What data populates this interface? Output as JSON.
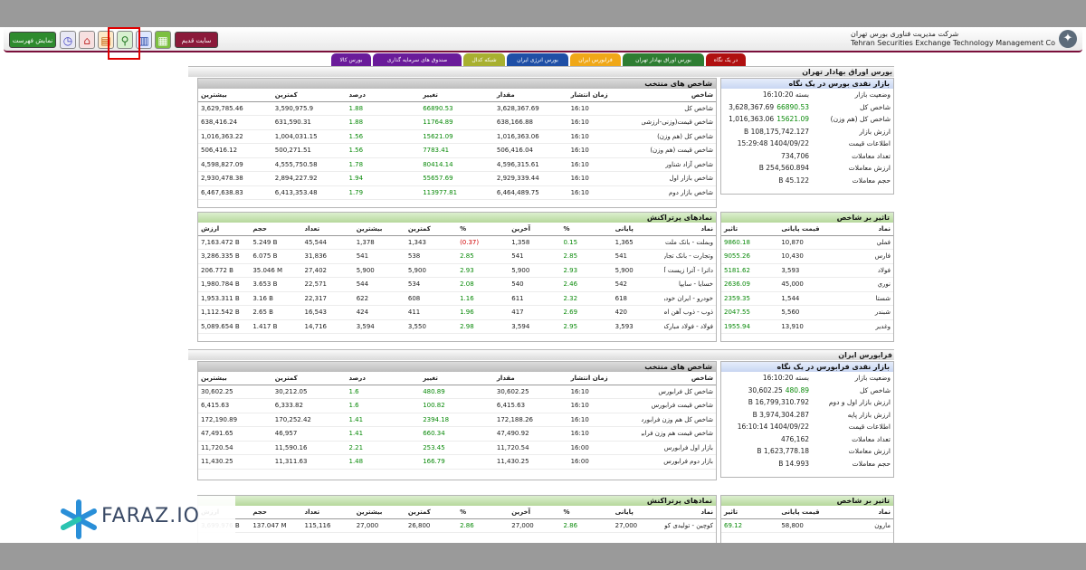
{
  "header": {
    "company_fa": "شرکت مدیریت فناوری بورس تهران",
    "company_en": "Tehran Securities Exchange Technology Management Co",
    "show_list_label": "نمایش فهرست",
    "old_site_label": "سایت قدیم"
  },
  "tabs": [
    {
      "label": "در یک نگاه",
      "color": "#b01010"
    },
    {
      "label": "بورس اوراق بهادار تهران",
      "color": "#2e7d32"
    },
    {
      "label": "فرابورس ایران",
      "color": "#f0a818"
    },
    {
      "label": "بورس انرژی ایران",
      "color": "#1f4fa6"
    },
    {
      "label": "شبکه کدال",
      "color": "#a8b030"
    },
    {
      "label": "صندوق های سرمایه گذاری",
      "color": "#6a1b9a"
    },
    {
      "label": "بورس کالا",
      "color": "#6a1b9a"
    }
  ],
  "tse": {
    "section_title": "بورس اوراق بهادار تهران",
    "summary": {
      "title": "بازار نقدی بورس در یک نگاه",
      "rows": [
        {
          "key": "وضعیت بازار",
          "val": "بسته 16:10:20",
          "chg": ""
        },
        {
          "key": "شاخص کل",
          "val": "3,628,367.69",
          "chg": "66890.53"
        },
        {
          "key": "شاخص کل (هم وزن)",
          "val": "1,016,363.06",
          "chg": "15621.09"
        },
        {
          "key": "ارزش بازار",
          "val": "108,175,742.127 B",
          "chg": ""
        },
        {
          "key": "اطلاعات قیمت",
          "val": "1404/09/22 15:29:48",
          "chg": ""
        },
        {
          "key": "تعداد معاملات",
          "val": "734,706",
          "chg": ""
        },
        {
          "key": "ارزش معاملات",
          "val": "254,560.894 B",
          "chg": ""
        },
        {
          "key": "حجم معاملات",
          "val": "45.122 B",
          "chg": ""
        }
      ]
    },
    "indices": {
      "title": "شاخص های منتخب",
      "columns": [
        "شاخص",
        "زمان انتشار",
        "مقدار",
        "تغییر",
        "درصد",
        "کمترین",
        "بیشترین"
      ],
      "rows": [
        [
          "شاخص کل",
          "16:10",
          "3,628,367.69",
          "66890.53",
          "1.88",
          "3,590,975.9",
          "3,629,785.46"
        ],
        [
          "شاخص قیمت(وزنی-ارزشی)",
          "16:10",
          "638,166.88",
          "11764.89",
          "1.88",
          "631,590.31",
          "638,416.24"
        ],
        [
          "شاخص کل (هم وزن)",
          "16:10",
          "1,016,363.06",
          "15621.09",
          "1.56",
          "1,004,031.15",
          "1,016,363.22"
        ],
        [
          "شاخص قیمت (هم وزن)",
          "16:10",
          "506,416.04",
          "7783.41",
          "1.56",
          "500,271.51",
          "506,416.12"
        ],
        [
          "شاخص آزاد شناور",
          "16:10",
          "4,596,315.61",
          "80414.14",
          "1.78",
          "4,555,750.58",
          "4,598,827.09"
        ],
        [
          "شاخص بازار اول",
          "16:10",
          "2,929,339.44",
          "55657.69",
          "1.94",
          "2,894,227.92",
          "2,930,478.38"
        ],
        [
          "شاخص بازار دوم",
          "16:10",
          "6,464,489.75",
          "113977.81",
          "1.79",
          "6,413,353.48",
          "6,467,638.83"
        ]
      ]
    },
    "impact": {
      "title": "تاثیر بر شاخص",
      "columns": [
        "نماد",
        "قیمت پایانی",
        "تاثیر"
      ],
      "rows": [
        [
          "فملي",
          "10,870",
          "9860.18"
        ],
        [
          "فارس",
          "10,430",
          "9055.26"
        ],
        [
          "فولاد",
          "3,593",
          "5181.62"
        ],
        [
          "نوري",
          "45,000",
          "2636.09"
        ],
        [
          "شستا",
          "1,544",
          "2359.35"
        ],
        [
          "شبندر",
          "5,560",
          "2047.55"
        ],
        [
          "وغدير",
          "13,910",
          "1955.94"
        ]
      ]
    },
    "active": {
      "title": "نمادهای پرتراکنش",
      "columns": [
        "نماد",
        "پایانی",
        "%",
        "آخرین",
        "%",
        "کمترین",
        "بیشترین",
        "تعداد",
        "حجم",
        "ارزش"
      ],
      "rows": [
        [
          "وبملت - بانک ملت",
          "1,365",
          "0.15",
          "1,358",
          "(0.37)",
          "1,343",
          "1,378",
          "45,544",
          "5.249 B",
          "7,163.472 B"
        ],
        [
          "وتجارت - بانک تجارت",
          "541",
          "2.85",
          "541",
          "2.85",
          "538",
          "541",
          "31,836",
          "6.075 B",
          "3,286.335 B"
        ],
        [
          "داترا - آترا زیست آرای",
          "5,900",
          "2.93",
          "5,900",
          "2.93",
          "5,900",
          "5,900",
          "27,402",
          "35.046 M",
          "206.772 B"
        ],
        [
          "خسایا - سایپا",
          "542",
          "2.46",
          "540",
          "2.08",
          "534",
          "544",
          "22,571",
          "3.653 B",
          "1,980.784 B"
        ],
        [
          "خودرو - ایران خودرو",
          "618",
          "2.32",
          "611",
          "1.16",
          "608",
          "622",
          "22,317",
          "3.16 B",
          "1,953.311 B"
        ],
        [
          "ذوب - ذوب آهن اصفهان",
          "420",
          "2.69",
          "417",
          "1.96",
          "411",
          "424",
          "16,543",
          "2.65 B",
          "1,112.542 B"
        ],
        [
          "فولاد - فولاد مبارکه اصفهان",
          "3,593",
          "2.95",
          "3,594",
          "2.98",
          "3,550",
          "3,594",
          "14,716",
          "1.417 B",
          "5,089.654 B"
        ]
      ]
    }
  },
  "ifb": {
    "section_title": "فرابورس ایران",
    "summary": {
      "title": "بازار نقدی فرابورس در یک نگاه",
      "rows": [
        {
          "key": "وضعیت بازار",
          "val": "بسته 16:10:20",
          "chg": ""
        },
        {
          "key": "شاخص کل",
          "val": "30,602.25",
          "chg": "480.89"
        },
        {
          "key": "ارزش بازار اول و دوم",
          "val": "16,799,310.792 B",
          "chg": ""
        },
        {
          "key": "ارزش بازار پایه",
          "val": "3,974,304.287 B",
          "chg": ""
        },
        {
          "key": "اطلاعات قیمت",
          "val": "1404/09/22 16:10:14",
          "chg": ""
        },
        {
          "key": "تعداد معاملات",
          "val": "476,162",
          "chg": ""
        },
        {
          "key": "ارزش معاملات",
          "val": "1,623,778.18 B",
          "chg": ""
        },
        {
          "key": "حجم معاملات",
          "val": "14.993 B",
          "chg": ""
        }
      ]
    },
    "indices": {
      "title": "شاخص های منتخب",
      "columns": [
        "شاخص",
        "زمان انتشار",
        "مقدار",
        "تغییر",
        "درصد",
        "کمترین",
        "بیشترین"
      ],
      "rows": [
        [
          "شاخص کل فرابورس",
          "16:10",
          "30,602.25",
          "480.89",
          "1.6",
          "30,212.05",
          "30,602.25"
        ],
        [
          "شاخص قیمت فرابورس",
          "16:10",
          "6,415.63",
          "100.82",
          "1.6",
          "6,333.82",
          "6,415.63"
        ],
        [
          "شاخص کل هم وزن فرابورس",
          "16:10",
          "172,188.26",
          "2394.18",
          "1.41",
          "170,252.42",
          "172,190.89"
        ],
        [
          "شاخص قیمت هم وزن فرابو...",
          "16:10",
          "47,490.92",
          "660.34",
          "1.41",
          "46,957",
          "47,491.65"
        ],
        [
          "بازار اول فرابورس",
          "16:00",
          "11,720.54",
          "253.45",
          "2.21",
          "11,590.16",
          "11,720.54"
        ],
        [
          "بازار دوم فرابورس",
          "16:00",
          "11,430.25",
          "166.79",
          "1.48",
          "11,311.63",
          "11,430.25"
        ]
      ]
    },
    "impact": {
      "title": "تاثیر بر شاخص",
      "columns": [
        "نماد",
        "قیمت پایانی",
        "تاثیر"
      ],
      "rows": [
        [
          "مارون",
          "58,800",
          "69.12"
        ]
      ]
    },
    "active": {
      "title": "نمادهای پرتراکنش",
      "columns": [
        "نماد",
        "پایانی",
        "%",
        "آخرین",
        "%",
        "کمترین",
        "بیشترین",
        "تعداد",
        "حجم",
        "ارزش"
      ],
      "rows": [
        [
          "کوچین - تولیدی کوچین",
          "27,000",
          "2.86",
          "27,000",
          "2.86",
          "26,800",
          "27,000",
          "115,116",
          "137.047 M",
          "3,699.976 B"
        ]
      ]
    }
  },
  "watermark": {
    "text": "FARAZ.IO"
  },
  "colors": {
    "positive": "#0a8a0a",
    "negative": "#d00000",
    "brand": "#7a0f3a"
  }
}
